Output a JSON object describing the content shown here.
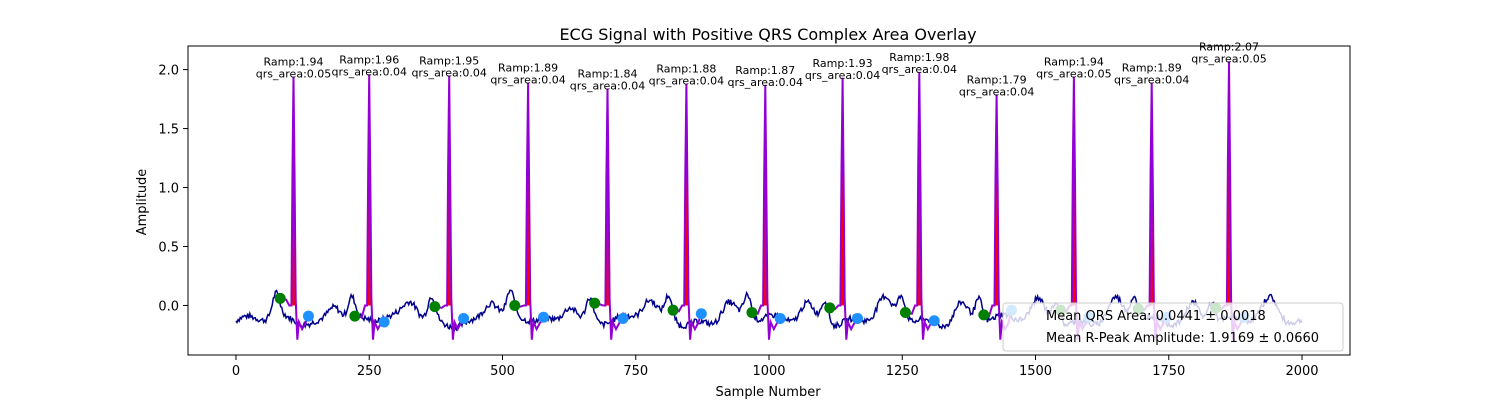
{
  "chart_data": {
    "type": "line",
    "title": "ECG Signal with Positive QRS Complex Area Overlay",
    "xlabel": "Sample Number",
    "ylabel": "Amplitude",
    "xlim": [
      -90,
      2090
    ],
    "ylim": [
      -0.42,
      2.2
    ],
    "xticks": [
      0,
      250,
      500,
      750,
      1000,
      1250,
      1500,
      1750,
      2000
    ],
    "yticks": [
      0.0,
      0.5,
      1.0,
      1.5,
      2.0
    ],
    "xtick_labels": [
      "0",
      "250",
      "500",
      "750",
      "1000",
      "1250",
      "1500",
      "1750",
      "2000"
    ],
    "ytick_labels": [
      "0.0",
      "0.5",
      "1.0",
      "1.5",
      "2.0"
    ],
    "colors": {
      "signal": "#00008b",
      "qrs_segment": "#9400d3",
      "qrs_fill": "#ff0000",
      "onset_marker": "#008000",
      "offset_marker": "#1e90ff"
    },
    "beats": [
      {
        "r_sample": 108,
        "r_amp": 1.94,
        "qrs_area": 0.05,
        "onset_sample": 83,
        "onset_amp": 0.06,
        "offset_sample": 136,
        "offset_amp": -0.09,
        "label_ramp": "Ramp:1.94",
        "label_area": "qrs_area:0.05"
      },
      {
        "r_sample": 250,
        "r_amp": 1.96,
        "qrs_area": 0.04,
        "onset_sample": 223,
        "onset_amp": -0.09,
        "offset_sample": 278,
        "offset_amp": -0.14,
        "label_ramp": "Ramp:1.96",
        "label_area": "qrs_area:0.04"
      },
      {
        "r_sample": 400,
        "r_amp": 1.95,
        "qrs_area": 0.04,
        "onset_sample": 373,
        "onset_amp": -0.01,
        "offset_sample": 427,
        "offset_amp": -0.11,
        "label_ramp": "Ramp:1.95",
        "label_area": "qrs_area:0.04"
      },
      {
        "r_sample": 548,
        "r_amp": 1.89,
        "qrs_area": 0.04,
        "onset_sample": 523,
        "onset_amp": 0.0,
        "offset_sample": 577,
        "offset_amp": -0.1,
        "label_ramp": "Ramp:1.89",
        "label_area": "qrs_area:0.04"
      },
      {
        "r_sample": 697,
        "r_amp": 1.84,
        "qrs_area": 0.04,
        "onset_sample": 673,
        "onset_amp": 0.02,
        "offset_sample": 726,
        "offset_amp": -0.11,
        "label_ramp": "Ramp:1.84",
        "label_area": "qrs_area:0.04"
      },
      {
        "r_sample": 845,
        "r_amp": 1.88,
        "qrs_area": 0.04,
        "onset_sample": 820,
        "onset_amp": -0.04,
        "offset_sample": 873,
        "offset_amp": -0.07,
        "label_ramp": "Ramp:1.88",
        "label_area": "qrs_area:0.04"
      },
      {
        "r_sample": 993,
        "r_amp": 1.87,
        "qrs_area": 0.04,
        "onset_sample": 968,
        "onset_amp": -0.06,
        "offset_sample": 1021,
        "offset_amp": -0.11,
        "label_ramp": "Ramp:1.87",
        "label_area": "qrs_area:0.04"
      },
      {
        "r_sample": 1138,
        "r_amp": 1.93,
        "qrs_area": 0.04,
        "onset_sample": 1114,
        "onset_amp": -0.02,
        "offset_sample": 1166,
        "offset_amp": -0.11,
        "label_ramp": "Ramp:1.93",
        "label_area": "qrs_area:0.04"
      },
      {
        "r_sample": 1282,
        "r_amp": 1.98,
        "qrs_area": 0.04,
        "onset_sample": 1256,
        "onset_amp": -0.06,
        "offset_sample": 1310,
        "offset_amp": -0.13,
        "label_ramp": "Ramp:1.98",
        "label_area": "qrs_area:0.04"
      },
      {
        "r_sample": 1427,
        "r_amp": 1.79,
        "qrs_area": 0.04,
        "onset_sample": 1403,
        "onset_amp": -0.08,
        "offset_sample": 1455,
        "offset_amp": -0.04,
        "label_ramp": "Ramp:1.79",
        "label_area": "qrs_area:0.04"
      },
      {
        "r_sample": 1572,
        "r_amp": 1.94,
        "qrs_area": 0.05,
        "onset_sample": 1547,
        "onset_amp": -0.04,
        "offset_sample": 1600,
        "offset_amp": -0.1,
        "label_ramp": "Ramp:1.94",
        "label_area": "qrs_area:0.05"
      },
      {
        "r_sample": 1718,
        "r_amp": 1.89,
        "qrs_area": 0.04,
        "onset_sample": 1693,
        "onset_amp": -0.03,
        "offset_sample": 1746,
        "offset_amp": -0.1,
        "label_ramp": "Ramp:1.89",
        "label_area": "qrs_area:0.04"
      },
      {
        "r_sample": 1863,
        "r_amp": 2.07,
        "qrs_area": 0.05,
        "onset_sample": 1838,
        "onset_amp": -0.02,
        "offset_sample": 1891,
        "offset_amp": -0.1,
        "label_ramp": "Ramp:2.07",
        "label_area": "qrs_area:0.05"
      }
    ],
    "signal_end_sample": 2000,
    "legend": {
      "placement": "lower-right",
      "entries": [
        "Mean QRS Area: 0.0441 ± 0.0018",
        "Mean R-Peak Amplitude: 1.9169 ± 0.0660"
      ]
    },
    "grid": false
  }
}
